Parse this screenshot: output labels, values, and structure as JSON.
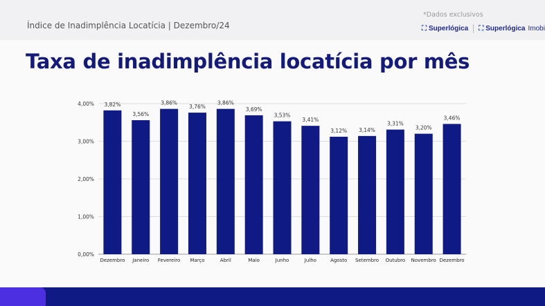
{
  "header": {
    "subtitle": "Índice de Inadimplência Locatícia | Dezembro/24",
    "note": "*Dados exclusivos",
    "logo1": "Superlógica",
    "logo2": "Superlógica",
    "logo2_suffix": "Imobi"
  },
  "title": "Taxa de inadimplência locatícia por mês",
  "colors": {
    "bar": "#0f1a85",
    "title": "#131a7a",
    "footer": "#0f1a85",
    "footer_accent": "#4b2fe0"
  },
  "chart_data": {
    "type": "bar",
    "categories": [
      "Dezembro",
      "Janeiro",
      "Fevereiro",
      "Março",
      "Abril",
      "Maio",
      "Junho",
      "Julho",
      "Agosto",
      "Setembro",
      "Outubro",
      "Novembro",
      "Dezembro"
    ],
    "values": [
      3.82,
      3.56,
      3.86,
      3.76,
      3.86,
      3.69,
      3.53,
      3.41,
      3.12,
      3.14,
      3.31,
      3.2,
      3.46
    ],
    "labels": [
      "3,82%",
      "3,56%",
      "3,86%",
      "3,76%",
      "3,86%",
      "3,69%",
      "3,53%",
      "3,41%",
      "3,12%",
      "3,14%",
      "3,31%",
      "3,20%",
      "3,46%"
    ],
    "yticks": [
      "0,00%",
      "1,00%",
      "2,00%",
      "3,00%",
      "4,00%"
    ],
    "ylim": [
      0,
      4
    ],
    "grid": true
  }
}
